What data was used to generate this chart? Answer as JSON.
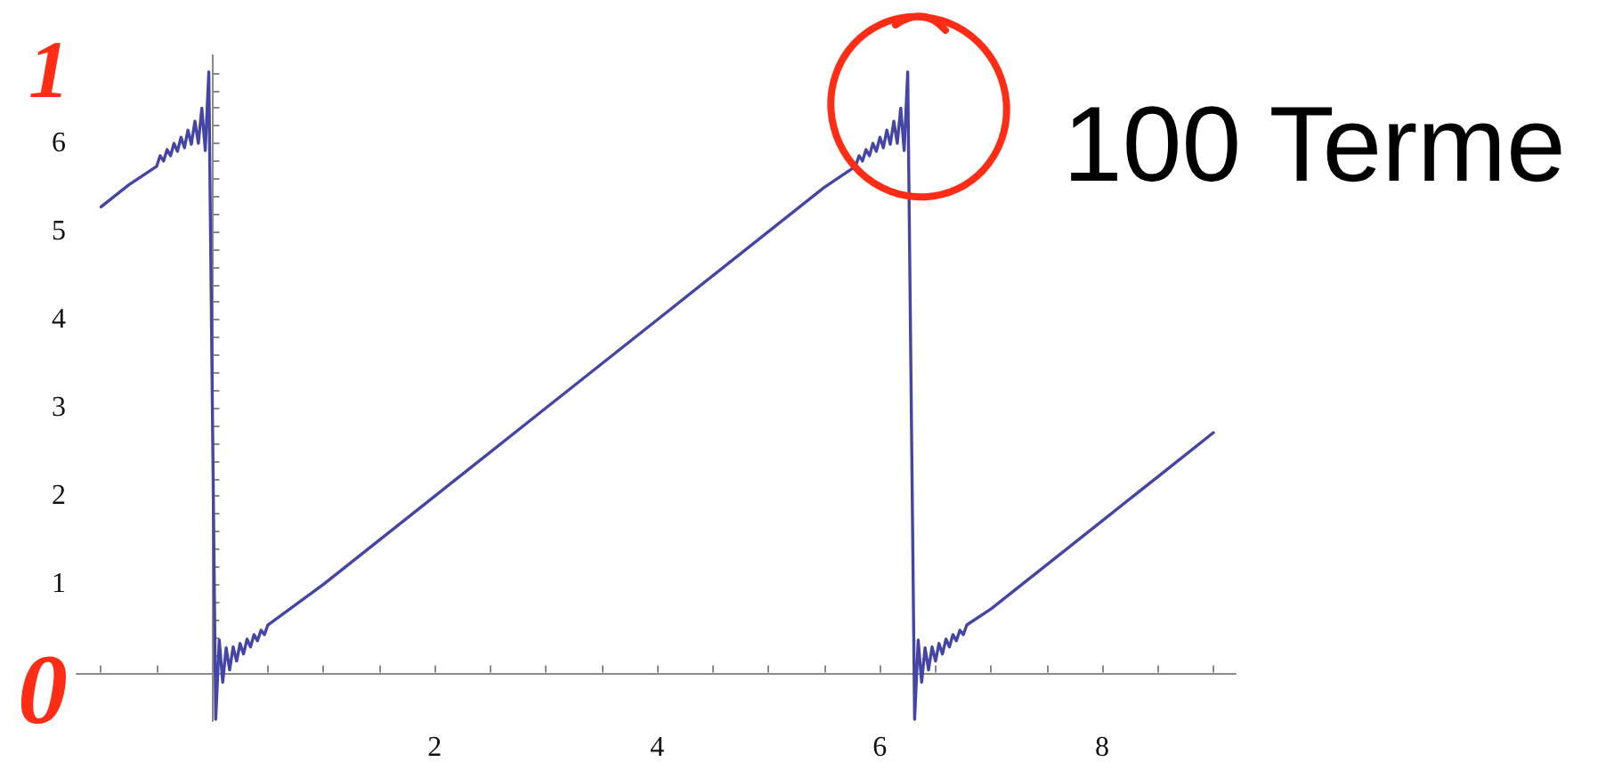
{
  "chart_data": {
    "type": "line",
    "title": "100 Terme",
    "annotations": [
      "1",
      "0"
    ],
    "color": "#4545a5",
    "x": [
      -1,
      -0.75,
      -0.5,
      -0.469,
      -0.438,
      -0.406,
      -0.375,
      -0.344,
      -0.313,
      -0.281,
      -0.25,
      -0.219,
      -0.188,
      -0.156,
      -0.125,
      -0.094,
      -0.063,
      -0.031,
      0,
      0.031,
      0.063,
      0.094,
      0.125,
      0.156,
      0.188,
      0.219,
      0.25,
      0.281,
      0.313,
      0.344,
      0.375,
      0.406,
      0.438,
      0.469,
      0.5,
      1,
      2,
      3,
      4,
      5,
      5.5,
      5.783,
      5.814,
      5.845,
      5.877,
      5.908,
      5.939,
      5.97,
      6.002,
      6.033,
      6.064,
      6.095,
      6.127,
      6.158,
      6.189,
      6.22,
      6.252,
      6.283,
      6.314,
      6.346,
      6.377,
      6.408,
      6.439,
      6.471,
      6.502,
      6.533,
      6.564,
      6.596,
      6.627,
      6.658,
      6.689,
      6.721,
      6.752,
      6.783,
      7,
      7.5,
      8,
      8.5,
      9
    ],
    "values": [
      5.28,
      5.53,
      5.74,
      5.86,
      5.8,
      5.93,
      5.86,
      6,
      5.91,
      6.07,
      5.95,
      6.15,
      5.99,
      6.25,
      6,
      6.4,
      5.92,
      6.81,
      3.14,
      -0.53,
      0.37,
      -0.11,
      0.28,
      0.03,
      0.29,
      0.13,
      0.33,
      0.21,
      0.38,
      0.29,
      0.43,
      0.36,
      0.48,
      0.43,
      0.54,
      1,
      2,
      3,
      4,
      5,
      5.5,
      5.74,
      5.86,
      5.8,
      5.93,
      5.86,
      6,
      5.91,
      6.07,
      5.95,
      6.15,
      5.99,
      6.25,
      6,
      6.4,
      5.92,
      6.81,
      3.14,
      -0.53,
      0.37,
      -0.11,
      0.28,
      0.03,
      0.29,
      0.13,
      0.33,
      0.21,
      0.38,
      0.29,
      0.43,
      0.36,
      0.48,
      0.43,
      0.54,
      0.72,
      1.22,
      1.72,
      2.22,
      2.72
    ],
    "xlim": [
      -1.22,
      9.2
    ],
    "ylim": [
      -0.55,
      7
    ],
    "xticks": [
      {
        "value": -1,
        "label": null
      },
      {
        "value": -0.5,
        "label": null
      },
      {
        "value": 0.5,
        "label": null
      },
      {
        "value": 1,
        "label": null
      },
      {
        "value": 1.5,
        "label": null
      },
      2,
      {
        "value": 2.5,
        "label": null
      },
      {
        "value": 3,
        "label": null
      },
      {
        "value": 3.5,
        "label": null
      },
      4,
      {
        "value": 4.5,
        "label": null
      },
      {
        "value": 5,
        "label": null
      },
      {
        "value": 5.5,
        "label": null
      },
      6,
      {
        "value": 6.5,
        "label": null
      },
      {
        "value": 7,
        "label": null
      },
      {
        "value": 7.5,
        "label": null
      },
      8,
      {
        "value": 8.5,
        "label": null
      },
      {
        "value": 9,
        "label": null
      }
    ],
    "yticks": [
      {
        "value": 0.2,
        "label": null
      },
      {
        "value": 0.4,
        "label": null
      },
      {
        "value": 0.6,
        "label": null
      },
      {
        "value": 0.8,
        "label": null
      },
      1,
      {
        "value": 1.2,
        "label": null
      },
      {
        "value": 1.4,
        "label": null
      },
      {
        "value": 1.6,
        "label": null
      },
      {
        "value": 1.8,
        "label": null
      },
      2,
      {
        "value": 2.2,
        "label": null
      },
      {
        "value": 2.4,
        "label": null
      },
      {
        "value": 2.6,
        "label": null
      },
      {
        "value": 2.8,
        "label": null
      },
      3,
      {
        "value": 3.2,
        "label": null
      },
      {
        "value": 3.4,
        "label": null
      },
      {
        "value": 3.6,
        "label": null
      },
      {
        "value": 3.8,
        "label": null
      },
      4,
      {
        "value": 4.2,
        "label": null
      },
      {
        "value": 4.4,
        "label": null
      },
      {
        "value": 4.6,
        "label": null
      },
      {
        "value": 4.8,
        "label": null
      },
      5,
      {
        "value": 5.2,
        "label": null
      },
      {
        "value": 5.4,
        "label": null
      },
      {
        "value": 5.6,
        "label": null
      },
      {
        "value": 5.8,
        "label": null
      },
      6,
      {
        "value": 6.2,
        "label": null
      },
      {
        "value": 6.4,
        "label": null
      },
      {
        "value": 6.6,
        "label": null
      },
      {
        "value": 6.8,
        "label": null
      }
    ]
  }
}
